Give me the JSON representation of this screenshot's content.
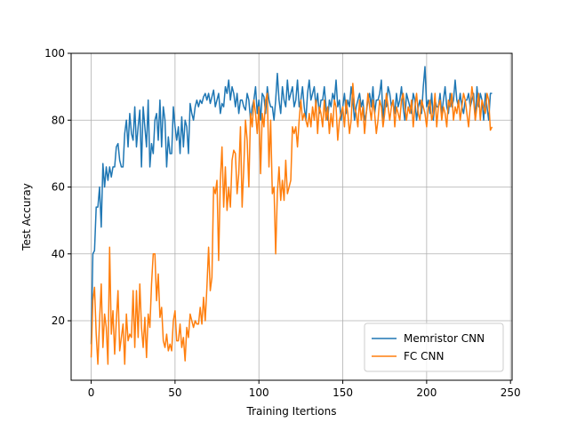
{
  "chart_data": {
    "type": "line",
    "x_label": "Training Itertions",
    "y_label": "Test Accuray",
    "xlim": [
      -11.95,
      250.95
    ],
    "xticks": [
      0,
      50,
      100,
      150,
      200,
      250
    ],
    "ylim": [
      2.2,
      100
    ],
    "yticks": [
      20,
      40,
      60,
      80,
      100
    ],
    "grid": true,
    "legend": "lower right",
    "x": [
      0,
      1,
      2,
      3,
      4,
      5,
      6,
      7,
      8,
      9,
      10,
      11,
      12,
      13,
      14,
      15,
      16,
      17,
      18,
      19,
      20,
      21,
      22,
      23,
      24,
      25,
      26,
      27,
      28,
      29,
      30,
      31,
      32,
      33,
      34,
      35,
      36,
      37,
      38,
      39,
      40,
      41,
      42,
      43,
      44,
      45,
      46,
      47,
      48,
      49,
      50,
      51,
      52,
      53,
      54,
      55,
      56,
      57,
      58,
      59,
      60,
      61,
      62,
      63,
      64,
      65,
      66,
      67,
      68,
      69,
      70,
      71,
      72,
      73,
      74,
      75,
      76,
      77,
      78,
      79,
      80,
      81,
      82,
      83,
      84,
      85,
      86,
      87,
      88,
      89,
      90,
      91,
      92,
      93,
      94,
      95,
      96,
      97,
      98,
      99,
      100,
      101,
      102,
      103,
      104,
      105,
      106,
      107,
      108,
      109,
      110,
      111,
      112,
      113,
      114,
      115,
      116,
      117,
      118,
      119,
      120,
      121,
      122,
      123,
      124,
      125,
      126,
      127,
      128,
      129,
      130,
      131,
      132,
      133,
      134,
      135,
      136,
      137,
      138,
      139,
      140,
      141,
      142,
      143,
      144,
      145,
      146,
      147,
      148,
      149,
      150,
      151,
      152,
      153,
      154,
      155,
      156,
      157,
      158,
      159,
      160,
      161,
      162,
      163,
      164,
      165,
      166,
      167,
      168,
      169,
      170,
      171,
      172,
      173,
      174,
      175,
      176,
      177,
      178,
      179,
      180,
      181,
      182,
      183,
      184,
      185,
      186,
      187,
      188,
      189,
      190,
      191,
      192,
      193,
      194,
      195,
      196,
      197,
      198,
      199,
      200,
      201,
      202,
      203,
      204,
      205,
      206,
      207,
      208,
      209,
      210,
      211,
      212,
      213,
      214,
      215,
      216,
      217,
      218,
      219,
      220,
      221,
      222,
      223,
      224,
      225,
      226,
      227,
      228,
      229,
      230,
      231,
      232,
      233,
      234,
      235,
      236,
      237,
      238,
      239
    ],
    "series": [
      {
        "name": "Memristor CNN",
        "color": "#1f77b4",
        "values": [
          13,
          40,
          41,
          54,
          54,
          60,
          48,
          67,
          60,
          66,
          62,
          66,
          63,
          66,
          66,
          72,
          73,
          68,
          66,
          66,
          76,
          80,
          72,
          82,
          76,
          74,
          84,
          72,
          78,
          83,
          66,
          84,
          78,
          72,
          86,
          66,
          73,
          70,
          80,
          82,
          74,
          86,
          72,
          84,
          80,
          66,
          75,
          70,
          70,
          84,
          78,
          74,
          78,
          70,
          81,
          72,
          80,
          78,
          70,
          85,
          82,
          80,
          84,
          86,
          84,
          86,
          85,
          87,
          88,
          86,
          88,
          85,
          87,
          89,
          84,
          86,
          88,
          82,
          85,
          84,
          90,
          88,
          92,
          86,
          90,
          88,
          84,
          88,
          82,
          86,
          86,
          84,
          83,
          88,
          86,
          80,
          84,
          86,
          90,
          82,
          86,
          80,
          88,
          87,
          82,
          90,
          86,
          84,
          84,
          80,
          86,
          94,
          86,
          82,
          90,
          86,
          84,
          92,
          86,
          88,
          90,
          84,
          86,
          92,
          84,
          86,
          90,
          84,
          80,
          88,
          92,
          86,
          88,
          90,
          84,
          88,
          82,
          86,
          86,
          90,
          84,
          80,
          86,
          84,
          88,
          86,
          92,
          84,
          86,
          80,
          84,
          88,
          82,
          86,
          84,
          90,
          86,
          80,
          84,
          86,
          88,
          84,
          86,
          80,
          82,
          86,
          88,
          84,
          90,
          82,
          86,
          86,
          88,
          92,
          80,
          86,
          84,
          90,
          88,
          84,
          86,
          82,
          88,
          84,
          86,
          90,
          84,
          80,
          88,
          86,
          84,
          82,
          88,
          86,
          80,
          84,
          86,
          82,
          90,
          96,
          84,
          86,
          82,
          88,
          80,
          86,
          84,
          84,
          88,
          82,
          86,
          90,
          84,
          82,
          88,
          84,
          86,
          92,
          86,
          84,
          88,
          84,
          82,
          86,
          86,
          88,
          84,
          86,
          88,
          80,
          90,
          84,
          88,
          86,
          80,
          88,
          84,
          80,
          88,
          88
        ]
      },
      {
        "name": "FC CNN",
        "color": "#ff7f0e",
        "values": [
          9,
          26,
          30,
          16,
          7,
          20,
          31,
          12,
          22,
          18,
          7,
          42,
          16,
          23,
          10,
          20,
          29,
          11,
          15,
          19,
          7,
          22,
          14,
          16,
          15,
          29,
          12,
          29,
          15,
          31,
          18,
          12,
          21,
          9,
          22,
          18,
          31,
          40,
          40,
          26,
          34,
          21,
          24,
          14,
          12,
          16,
          11,
          13,
          11,
          20,
          23,
          14,
          14,
          19,
          12,
          15,
          8,
          18,
          15,
          22,
          20,
          18,
          20,
          19,
          19,
          24,
          19,
          27,
          20,
          30,
          42,
          29,
          33,
          60,
          58,
          62,
          38,
          62,
          72,
          54,
          66,
          53,
          60,
          54,
          68,
          71,
          70,
          58,
          64,
          78,
          54,
          66,
          80,
          74,
          60,
          82,
          78,
          86,
          82,
          76,
          84,
          64,
          82,
          78,
          86,
          88,
          66,
          80,
          58,
          60,
          40,
          58,
          66,
          56,
          62,
          56,
          68,
          58,
          60,
          62,
          78,
          76,
          78,
          72,
          80,
          86,
          80,
          82,
          80,
          78,
          82,
          78,
          84,
          80,
          86,
          76,
          84,
          82,
          78,
          86,
          80,
          84,
          76,
          82,
          78,
          86,
          84,
          74,
          80,
          82,
          84,
          78,
          86,
          82,
          76,
          80,
          91,
          84,
          82,
          78,
          86,
          80,
          84,
          76,
          82,
          88,
          84,
          80,
          86,
          82,
          76,
          80,
          86,
          84,
          78,
          82,
          88,
          84,
          80,
          84,
          86,
          78,
          84,
          82,
          80,
          86,
          88,
          84,
          80,
          84,
          82,
          86,
          78,
          84,
          88,
          82,
          80,
          86,
          84,
          82,
          78,
          84,
          86,
          80,
          82,
          88,
          78,
          84,
          86,
          80,
          84,
          82,
          78,
          86,
          84,
          88,
          80,
          84,
          82,
          86,
          80,
          84,
          88,
          86,
          82,
          78,
          84,
          90,
          86,
          80,
          84,
          88,
          80,
          86,
          84,
          82,
          88,
          86,
          77,
          78
        ]
      }
    ]
  }
}
